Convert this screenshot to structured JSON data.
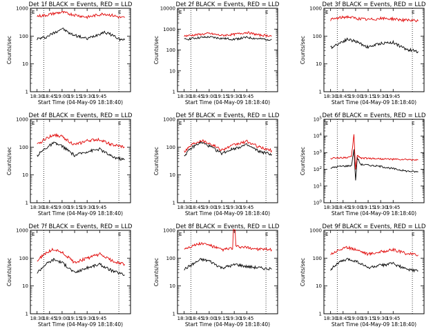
{
  "colors": {
    "events": "#000000",
    "lld": "#e00000",
    "background": "#ffffff"
  },
  "chart_data": [
    {
      "type": "line",
      "title": "Det 1f BLACK = Events, RED = LLD",
      "xlabel": "Start Time (04-May-09 18:18:40)",
      "ylabel": "Counts/sec",
      "scale": "log",
      "ylim": [
        1,
        1000
      ],
      "yticks": [
        {
          "v": 1,
          "l": "1"
        },
        {
          "v": 10,
          "l": "10"
        },
        {
          "v": 100,
          "l": "100"
        },
        {
          "v": 1000,
          "l": "1000"
        }
      ],
      "xticks": [
        "18:30",
        "18:45",
        "19:00",
        "19:15",
        "19:30",
        "19:45"
      ],
      "x_minutes": [
        0,
        30
      ],
      "markers": [
        0,
        90
      ],
      "flag_label": "E",
      "series": [
        {
          "name": "BLACK = Events",
          "color": "#000000",
          "x": [
            0,
            10,
            20,
            30,
            40,
            60,
            80,
            90,
            100,
            105
          ],
          "y": [
            80,
            90,
            130,
            190,
            120,
            80,
            140,
            110,
            75,
            72
          ]
        },
        {
          "name": "RED = LLD",
          "color": "#e00000",
          "x": [
            0,
            10,
            20,
            30,
            40,
            60,
            80,
            90,
            100,
            105
          ],
          "y": [
            520,
            560,
            650,
            720,
            620,
            480,
            640,
            560,
            470,
            460
          ]
        }
      ]
    },
    {
      "type": "line",
      "title": "Det 2f BLACK = Events, RED = LLD",
      "xlabel": "Start Time (04-May-09 18:18:40)",
      "ylabel": "Counts/sec",
      "scale": "log",
      "ylim": [
        1,
        10000
      ],
      "yticks": [
        {
          "v": 1,
          "l": "1"
        },
        {
          "v": 10,
          "l": "10"
        },
        {
          "v": 100,
          "l": "100"
        },
        {
          "v": 1000,
          "l": "1000"
        },
        {
          "v": 10000,
          "l": "10000"
        }
      ],
      "xticks": [
        "18:30",
        "18:45",
        "19:00",
        "19:15",
        "19:30",
        "19:45"
      ],
      "x_minutes": [
        0,
        30
      ],
      "markers": [
        0,
        90
      ],
      "flag_label": "E",
      "series": [
        {
          "name": "BLACK = Events",
          "color": "#000000",
          "x": [
            0,
            15,
            30,
            45,
            60,
            75,
            90,
            105
          ],
          "y": [
            320,
            380,
            420,
            360,
            330,
            400,
            340,
            320
          ]
        },
        {
          "name": "RED = LLD",
          "color": "#e00000",
          "x": [
            0,
            15,
            30,
            45,
            60,
            75,
            90,
            105
          ],
          "y": [
            470,
            540,
            620,
            500,
            560,
            700,
            520,
            480
          ]
        }
      ]
    },
    {
      "type": "line",
      "title": "Det 3f BLACK = Events, RED = LLD",
      "xlabel": "Start Time (04-May-09 18:18:40)",
      "ylabel": "Counts/sec",
      "scale": "log",
      "ylim": [
        1,
        1000
      ],
      "yticks": [
        {
          "v": 1,
          "l": "1"
        },
        {
          "v": 10,
          "l": "10"
        },
        {
          "v": 100,
          "l": "100"
        },
        {
          "v": 1000,
          "l": "1000"
        }
      ],
      "xticks": [
        "18:30",
        "18:45",
        "19:00",
        "19:15",
        "19:30",
        "19:45"
      ],
      "x_minutes": [
        0,
        30
      ],
      "markers": [
        0,
        90
      ],
      "flag_label": "E",
      "series": [
        {
          "name": "BLACK = Events",
          "color": "#000000",
          "x": [
            0,
            10,
            20,
            30,
            45,
            60,
            75,
            90,
            105
          ],
          "y": [
            38,
            55,
            78,
            65,
            40,
            55,
            60,
            34,
            28
          ]
        },
        {
          "name": "RED = LLD",
          "color": "#e00000",
          "x": [
            0,
            10,
            20,
            30,
            45,
            60,
            75,
            90,
            105
          ],
          "y": [
            390,
            450,
            500,
            440,
            390,
            430,
            420,
            370,
            350
          ]
        }
      ]
    },
    {
      "type": "line",
      "title": "Det 4f BLACK = Events, RED = LLD",
      "xlabel": "Start Time (04-May-09 18:18:40)",
      "ylabel": "Counts/sec",
      "scale": "log",
      "ylim": [
        1,
        1000
      ],
      "yticks": [
        {
          "v": 1,
          "l": "1"
        },
        {
          "v": 10,
          "l": "10"
        },
        {
          "v": 100,
          "l": "100"
        },
        {
          "v": 1000,
          "l": "1000"
        }
      ],
      "xticks": [
        "18:30",
        "18:45",
        "19:00",
        "19:15",
        "19:30",
        "19:45"
      ],
      "x_minutes": [
        0,
        30
      ],
      "markers": [
        0,
        90
      ],
      "flag_label": "E",
      "series": [
        {
          "name": "BLACK = Events",
          "color": "#000000",
          "x": [
            0,
            10,
            20,
            30,
            45,
            60,
            75,
            90,
            105
          ],
          "y": [
            50,
            90,
            140,
            110,
            50,
            70,
            85,
            45,
            35
          ]
        },
        {
          "name": "RED = LLD",
          "color": "#e00000",
          "x": [
            0,
            10,
            20,
            30,
            45,
            60,
            75,
            90,
            105
          ],
          "y": [
            120,
            200,
            280,
            240,
            120,
            170,
            190,
            120,
            100
          ]
        }
      ]
    },
    {
      "type": "line",
      "title": "Det 5f BLACK = Events, RED = LLD",
      "xlabel": "Start Time (04-May-09 18:18:40)",
      "ylabel": "Counts/sec",
      "scale": "log",
      "ylim": [
        1,
        1000
      ],
      "yticks": [
        {
          "v": 1,
          "l": "1"
        },
        {
          "v": 10,
          "l": "10"
        },
        {
          "v": 100,
          "l": "100"
        },
        {
          "v": 1000,
          "l": "1000"
        }
      ],
      "xticks": [
        "18:30",
        "18:45",
        "19:00",
        "19:15",
        "19:30",
        "19:45"
      ],
      "x_minutes": [
        0,
        30
      ],
      "markers": [
        0,
        90
      ],
      "flag_label": "E",
      "series": [
        {
          "name": "BLACK = Events",
          "color": "#000000",
          "x": [
            0,
            10,
            20,
            30,
            45,
            60,
            75,
            90,
            105
          ],
          "y": [
            50,
            100,
            150,
            110,
            60,
            90,
            120,
            70,
            55
          ]
        },
        {
          "name": "RED = LLD",
          "color": "#e00000",
          "x": [
            0,
            10,
            20,
            30,
            45,
            60,
            75,
            90,
            105
          ],
          "y": [
            70,
            130,
            180,
            140,
            80,
            120,
            160,
            100,
            75
          ]
        }
      ]
    },
    {
      "type": "line",
      "title": "Det 6f BLACK = Events, RED = LLD",
      "xlabel": "Start Time (04-May-09 18:18:40)",
      "ylabel": "Counts/sec",
      "scale": "log",
      "ylim": [
        1,
        100000
      ],
      "yticks": [
        {
          "v": 1,
          "l": "10^0"
        },
        {
          "v": 10,
          "l": "10^1"
        },
        {
          "v": 100,
          "l": "10^2"
        },
        {
          "v": 1000,
          "l": "10^3"
        },
        {
          "v": 10000,
          "l": "10^4"
        },
        {
          "v": 100000,
          "l": "10^5"
        }
      ],
      "xticks": [
        "18:30",
        "18:45",
        "19:00",
        "19:15",
        "19:30",
        "19:45"
      ],
      "x_minutes": [
        0,
        30
      ],
      "markers": [
        0,
        90
      ],
      "flag_label": "E",
      "series": [
        {
          "name": "BLACK = Events",
          "color": "#000000",
          "x": [
            0,
            10,
            20,
            25,
            28,
            30,
            32,
            36,
            45,
            60,
            75,
            90,
            105
          ],
          "y": [
            120,
            150,
            160,
            170,
            1500,
            20,
            500,
            200,
            180,
            150,
            110,
            80,
            70
          ]
        },
        {
          "name": "RED = LLD",
          "color": "#e00000",
          "x": [
            0,
            10,
            20,
            25,
            28,
            30,
            32,
            36,
            45,
            60,
            75,
            90,
            105
          ],
          "y": [
            450,
            500,
            520,
            560,
            12000,
            100,
            700,
            480,
            460,
            430,
            400,
            380,
            370
          ]
        }
      ]
    },
    {
      "type": "line",
      "title": "Det 7f BLACK = Events, RED = LLD",
      "xlabel": "Start Time (04-May-09 18:18:40)",
      "ylabel": "Counts/sec",
      "scale": "log",
      "ylim": [
        1,
        1000
      ],
      "yticks": [
        {
          "v": 1,
          "l": "1"
        },
        {
          "v": 10,
          "l": "10"
        },
        {
          "v": 100,
          "l": "100"
        },
        {
          "v": 1000,
          "l": "1000"
        }
      ],
      "xticks": [
        "18:30",
        "18:45",
        "19:00",
        "19:15",
        "19:30",
        "19:45"
      ],
      "x_minutes": [
        0,
        30
      ],
      "markers": [
        0,
        90
      ],
      "flag_label": "E",
      "series": [
        {
          "name": "BLACK = Events",
          "color": "#000000",
          "x": [
            0,
            10,
            20,
            30,
            45,
            60,
            75,
            90,
            105
          ],
          "y": [
            30,
            60,
            90,
            70,
            30,
            45,
            60,
            35,
            25
          ]
        },
        {
          "name": "RED = LLD",
          "color": "#e00000",
          "x": [
            0,
            10,
            20,
            30,
            45,
            60,
            75,
            90,
            105
          ],
          "y": [
            80,
            150,
            210,
            160,
            70,
            100,
            140,
            80,
            60
          ]
        }
      ]
    },
    {
      "type": "line",
      "title": "Det 8f BLACK = Events, RED = LLD",
      "xlabel": "Start Time (04-May-09 18:18:40)",
      "ylabel": "Counts/sec",
      "scale": "log",
      "ylim": [
        1,
        1000
      ],
      "yticks": [
        {
          "v": 1,
          "l": "1"
        },
        {
          "v": 10,
          "l": "10"
        },
        {
          "v": 100,
          "l": "100"
        },
        {
          "v": 1000,
          "l": "1000"
        }
      ],
      "xticks": [
        "18:30",
        "18:45",
        "19:00",
        "19:15",
        "19:30",
        "19:45"
      ],
      "x_minutes": [
        0,
        30
      ],
      "markers": [
        0,
        90
      ],
      "flag_label": "E",
      "series": [
        {
          "name": "BLACK = Events",
          "color": "#000000",
          "x": [
            0,
            10,
            20,
            30,
            45,
            58,
            62,
            75,
            90,
            105
          ],
          "y": [
            40,
            60,
            90,
            80,
            45,
            55,
            60,
            50,
            45,
            40
          ]
        },
        {
          "name": "RED = LLD",
          "color": "#e00000",
          "x": [
            0,
            10,
            20,
            30,
            45,
            58,
            59,
            61,
            62,
            75,
            90,
            105
          ],
          "y": [
            220,
            280,
            340,
            300,
            200,
            230,
            1000,
            1000,
            260,
            240,
            210,
            200
          ]
        }
      ]
    },
    {
      "type": "line",
      "title": "Det 9f BLACK = Events, RED = LLD",
      "xlabel": "Start Time (04-May-09 18:18:40)",
      "ylabel": "Counts/sec",
      "scale": "log",
      "ylim": [
        1,
        1000
      ],
      "yticks": [
        {
          "v": 1,
          "l": "1"
        },
        {
          "v": 10,
          "l": "10"
        },
        {
          "v": 100,
          "l": "100"
        },
        {
          "v": 1000,
          "l": "1000"
        }
      ],
      "xticks": [
        "18:30",
        "18:45",
        "19:00",
        "19:15",
        "19:30",
        "19:45"
      ],
      "x_minutes": [
        0,
        30
      ],
      "markers": [
        0,
        90
      ],
      "flag_label": "E",
      "series": [
        {
          "name": "BLACK = Events",
          "color": "#000000",
          "x": [
            0,
            10,
            20,
            30,
            45,
            60,
            75,
            90,
            105
          ],
          "y": [
            40,
            70,
            90,
            80,
            45,
            55,
            65,
            40,
            35
          ]
        },
        {
          "name": "RED = LLD",
          "color": "#e00000",
          "x": [
            0,
            10,
            20,
            30,
            45,
            60,
            75,
            90,
            105
          ],
          "y": [
            140,
            200,
            240,
            210,
            140,
            170,
            200,
            150,
            130
          ]
        }
      ]
    }
  ]
}
